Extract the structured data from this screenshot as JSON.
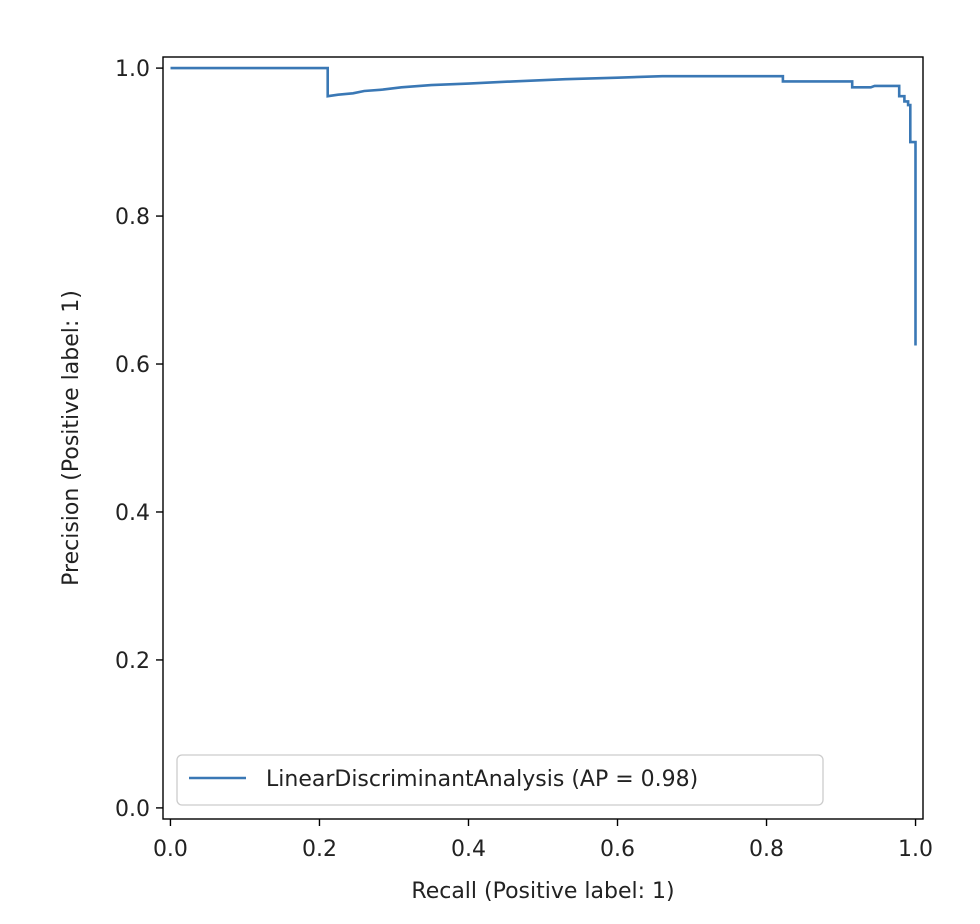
{
  "chart_data": {
    "type": "line",
    "title": "",
    "xlabel": "Recall (Positive label: 1)",
    "ylabel": "Precision (Positive label: 1)",
    "xlim": [
      -0.01,
      1.01
    ],
    "ylim": [
      -0.015,
      1.015
    ],
    "x_ticks": [
      0.0,
      0.2,
      0.4,
      0.6,
      0.8,
      1.0
    ],
    "x_tick_labels": [
      "0.0",
      "0.2",
      "0.4",
      "0.6",
      "0.8",
      "1.0"
    ],
    "y_ticks": [
      0.0,
      0.2,
      0.4,
      0.6,
      0.8,
      1.0
    ],
    "y_tick_labels": [
      "0.0",
      "0.2",
      "0.4",
      "0.6",
      "0.8",
      "1.0"
    ],
    "grid": false,
    "legend_position": "lower-left",
    "series": [
      {
        "name": "LinearDiscriminantAnalysis (AP = 0.98)",
        "color": "#3a78b5",
        "drawstyle": "steps",
        "points": [
          [
            0.0,
            1.0
          ],
          [
            0.211,
            1.0
          ],
          [
            0.211,
            0.962
          ],
          [
            0.225,
            0.964
          ],
          [
            0.245,
            0.966
          ],
          [
            0.26,
            0.969
          ],
          [
            0.285,
            0.971
          ],
          [
            0.31,
            0.974
          ],
          [
            0.35,
            0.977
          ],
          [
            0.4,
            0.979
          ],
          [
            0.46,
            0.982
          ],
          [
            0.53,
            0.985
          ],
          [
            0.6,
            0.987
          ],
          [
            0.66,
            0.989
          ],
          [
            0.822,
            0.989
          ],
          [
            0.822,
            0.982
          ],
          [
            0.915,
            0.982
          ],
          [
            0.915,
            0.974
          ],
          [
            0.94,
            0.974
          ],
          [
            0.945,
            0.976
          ],
          [
            0.978,
            0.976
          ],
          [
            0.978,
            0.962
          ],
          [
            0.985,
            0.962
          ],
          [
            0.985,
            0.955
          ],
          [
            0.99,
            0.955
          ],
          [
            0.99,
            0.95
          ],
          [
            0.993,
            0.95
          ],
          [
            0.993,
            0.9
          ],
          [
            1.0,
            0.9
          ],
          [
            1.0,
            0.625
          ]
        ]
      }
    ]
  }
}
